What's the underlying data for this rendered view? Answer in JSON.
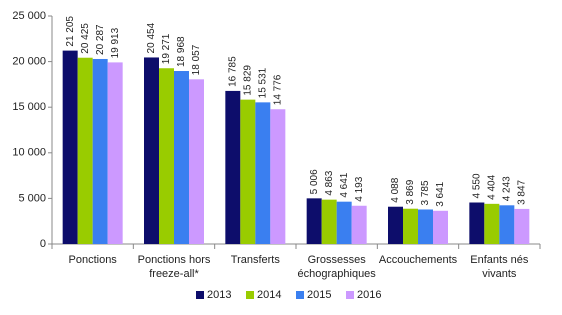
{
  "chart_data": {
    "type": "bar",
    "categories": [
      "Ponctions",
      "Ponctions hors freeze-all*",
      "Transferts",
      "Grossesses échographiques",
      "Accouchements",
      "Enfants nés vivants"
    ],
    "series": [
      {
        "name": "2013",
        "color": "#0d0d6b",
        "values": [
          21205,
          20454,
          16785,
          5006,
          4088,
          4550
        ],
        "value_labels": [
          "21 205",
          "20 454",
          "16 785",
          "5 006",
          "4 088",
          "4 550"
        ]
      },
      {
        "name": "2014",
        "color": "#99cc00",
        "values": [
          20425,
          19271,
          15829,
          4863,
          3869,
          4404
        ],
        "value_labels": [
          "20 425",
          "19 271",
          "15 829",
          "4 863",
          "3 869",
          "4 404"
        ]
      },
      {
        "name": "2015",
        "color": "#3a7ff0",
        "values": [
          20287,
          18968,
          15531,
          4641,
          3785,
          4243
        ],
        "value_labels": [
          "20 287",
          "18 968",
          "15 531",
          "4 641",
          "3 785",
          "4 243"
        ]
      },
      {
        "name": "2016",
        "color": "#cc99ff",
        "values": [
          19913,
          18057,
          14776,
          4193,
          3641,
          3847
        ],
        "value_labels": [
          "19 913",
          "18 057",
          "14 776",
          "4 193",
          "3 641",
          "3 847"
        ]
      }
    ],
    "ylim": [
      0,
      25000
    ],
    "yticks": [
      {
        "value": 0,
        "label": "0"
      },
      {
        "value": 5000,
        "label": "5 000"
      },
      {
        "value": 10000,
        "label": "10 000"
      },
      {
        "value": 15000,
        "label": "15 000"
      },
      {
        "value": 20000,
        "label": "20 000"
      },
      {
        "value": 25000,
        "label": "25 000"
      }
    ],
    "grid": false,
    "legend": "bottom"
  }
}
